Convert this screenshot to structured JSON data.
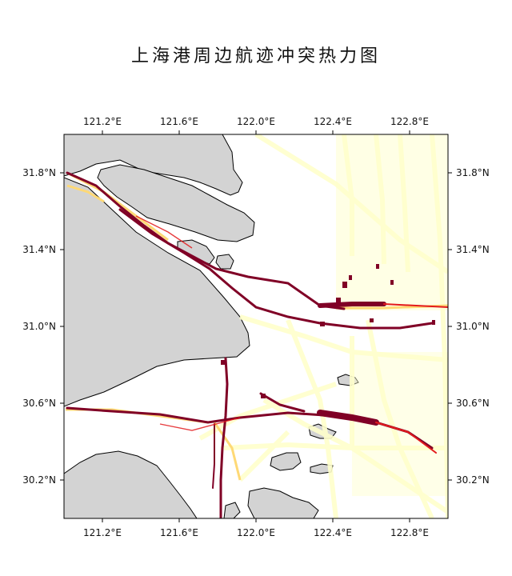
{
  "title": "上海港周边航迹冲突热力图",
  "map": {
    "lon_range": [
      121.0,
      123.0
    ],
    "lat_range": [
      30.0,
      32.0
    ],
    "lon_ticks": [
      121.2,
      121.6,
      122.0,
      122.4,
      122.8
    ],
    "lat_ticks": [
      30.2,
      30.6,
      31.0,
      31.4,
      31.8
    ],
    "lon_tick_labels": [
      "121.2°E",
      "121.6°E",
      "122.0°E",
      "122.4°E",
      "122.8°E"
    ],
    "lat_tick_labels": [
      "30.2°N",
      "30.6°N",
      "31.0°N",
      "31.4°N",
      "31.8°N"
    ],
    "land_color": "#d3d3d3",
    "heat_colors": [
      "#ffffcc",
      "#fed976",
      "#fd8d3c",
      "#e31a1c",
      "#800026"
    ]
  }
}
